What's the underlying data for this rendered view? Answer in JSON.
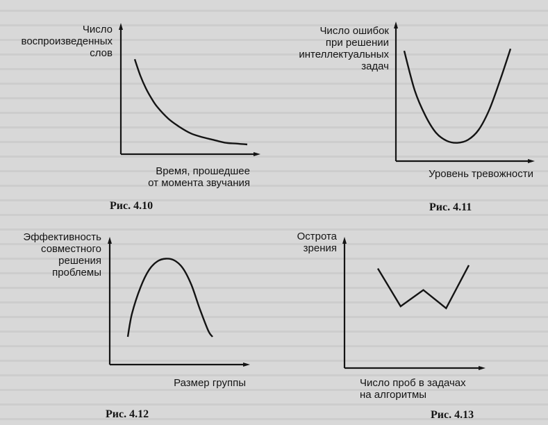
{
  "colors": {
    "ink": "#141414",
    "paper": "#d8d8d8"
  },
  "chart_data": [
    {
      "type": "line",
      "figure": "fig_4_10",
      "caption": "Рис. 4.10",
      "ylabel_lines": [
        "Число",
        "воспроизведенных",
        "слов"
      ],
      "xlabel_lines": [
        "Время, прошедшее",
        "от момента звучания"
      ],
      "x": [
        0,
        0.05,
        0.1,
        0.15,
        0.2,
        0.3,
        0.4,
        0.5,
        0.6,
        0.7,
        0.8,
        0.9,
        1.0
      ],
      "y": [
        0.96,
        0.78,
        0.64,
        0.53,
        0.44,
        0.31,
        0.22,
        0.15,
        0.11,
        0.08,
        0.05,
        0.04,
        0.03
      ],
      "xlim": [
        0,
        1
      ],
      "ylim": [
        0,
        1
      ]
    },
    {
      "type": "line",
      "figure": "fig_4_11",
      "caption": "Рис. 4.11",
      "ylabel_lines": [
        "Число ошибок",
        "при решении",
        "интеллектуальных",
        "задач"
      ],
      "xlabel_lines": [
        "Уровень тревожности"
      ],
      "x": [
        0,
        0.1,
        0.2,
        0.3,
        0.4,
        0.5,
        0.6,
        0.7,
        0.8,
        0.9,
        1.0
      ],
      "y": [
        0.95,
        0.55,
        0.3,
        0.13,
        0.05,
        0.03,
        0.06,
        0.16,
        0.36,
        0.65,
        0.97
      ],
      "xlim": [
        0,
        1
      ],
      "ylim": [
        0,
        1
      ]
    },
    {
      "type": "line",
      "figure": "fig_4_12",
      "caption": "Рис. 4.12",
      "ylabel_lines": [
        "Эффективность",
        "совместного",
        "решения",
        "проблемы"
      ],
      "xlabel_lines": [
        "Размер группы"
      ],
      "x": [
        0,
        0.05,
        0.15,
        0.25,
        0.35,
        0.45,
        0.55,
        0.65,
        0.75,
        0.85,
        0.95,
        1.0
      ],
      "y": [
        0.08,
        0.35,
        0.65,
        0.85,
        0.95,
        0.98,
        0.96,
        0.87,
        0.68,
        0.4,
        0.15,
        0.08
      ],
      "xlim": [
        0,
        1
      ],
      "ylim": [
        0,
        1
      ]
    },
    {
      "type": "line",
      "figure": "fig_4_13",
      "caption": "Рис. 4.13",
      "ylabel_lines": [
        "Острота",
        "зрения"
      ],
      "xlabel_lines": [
        "Число проб в задачах",
        "на алгоритмы"
      ],
      "x": [
        0,
        0.25,
        0.5,
        0.75,
        1.0
      ],
      "y": [
        0.93,
        0.35,
        0.6,
        0.32,
        0.98
      ],
      "xlim": [
        0,
        1
      ],
      "ylim": [
        0,
        1
      ]
    }
  ]
}
